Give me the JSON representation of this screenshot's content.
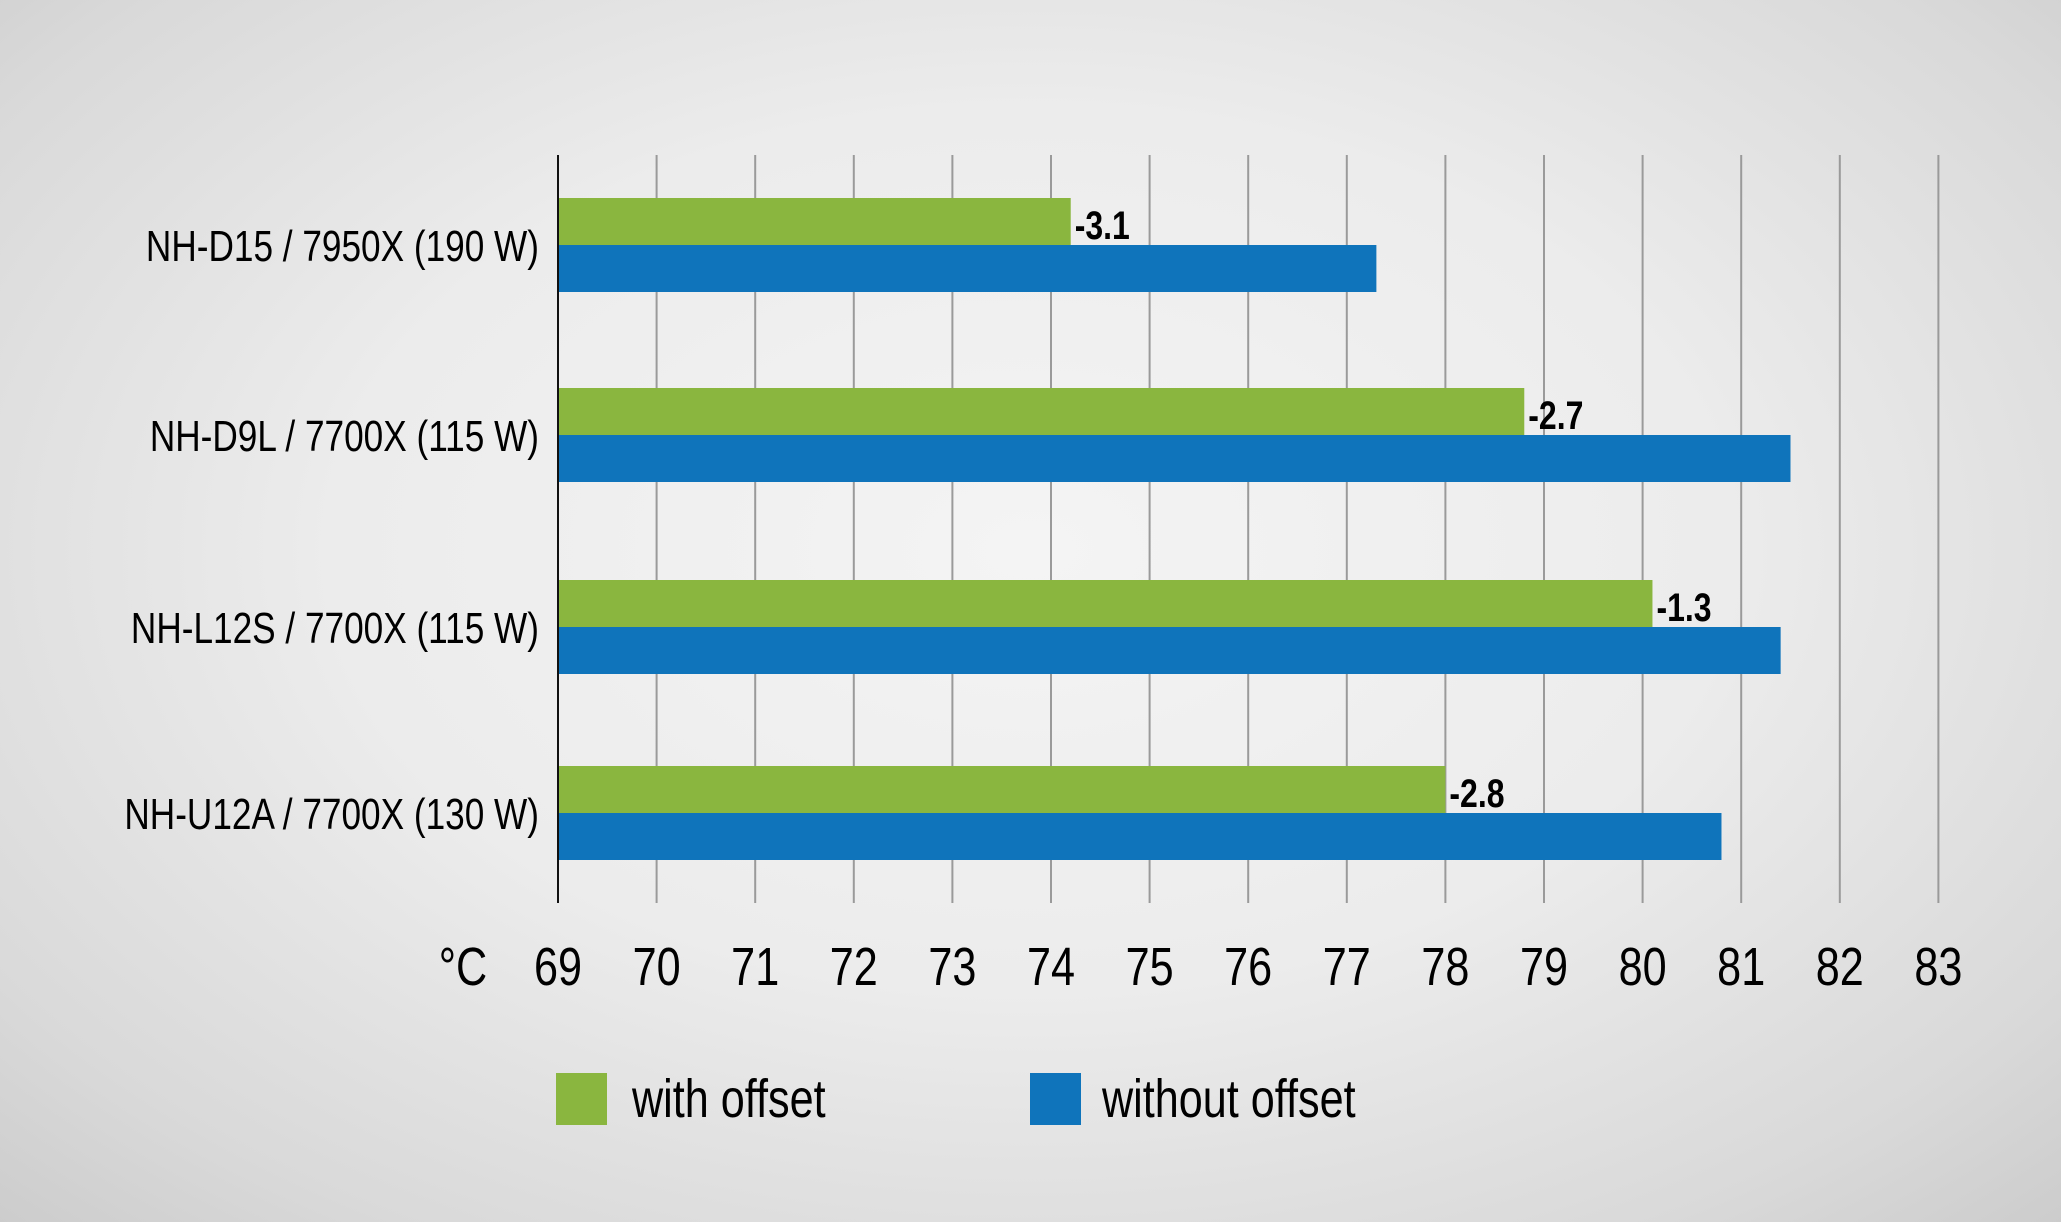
{
  "chart_data": {
    "type": "bar",
    "orientation": "horizontal",
    "title": "",
    "xlabel": "°C",
    "ylabel": "",
    "xlim": [
      69,
      83
    ],
    "x_ticks": [
      "69",
      "70",
      "71",
      "72",
      "73",
      "74",
      "75",
      "76",
      "77",
      "78",
      "79",
      "80",
      "81",
      "82",
      "83"
    ],
    "unit_label": "°C",
    "grid": true,
    "legend_position": "bottom",
    "categories": [
      "NH-D15 / 7950X (190 W)",
      "NH-D9L / 7700X (115 W)",
      "NH-L12S / 7700X (115 W)",
      "NH-U12A / 7700X (130 W)"
    ],
    "series": [
      {
        "name": "with offset",
        "color": "#8ab63f",
        "values": [
          74.2,
          78.8,
          80.1,
          78.0
        ]
      },
      {
        "name": "without offset",
        "color": "#0f74bb",
        "values": [
          77.3,
          81.5,
          81.4,
          80.8
        ]
      }
    ],
    "annotations": [
      "-3.1",
      "-2.7",
      "-1.3",
      "-2.8"
    ]
  }
}
